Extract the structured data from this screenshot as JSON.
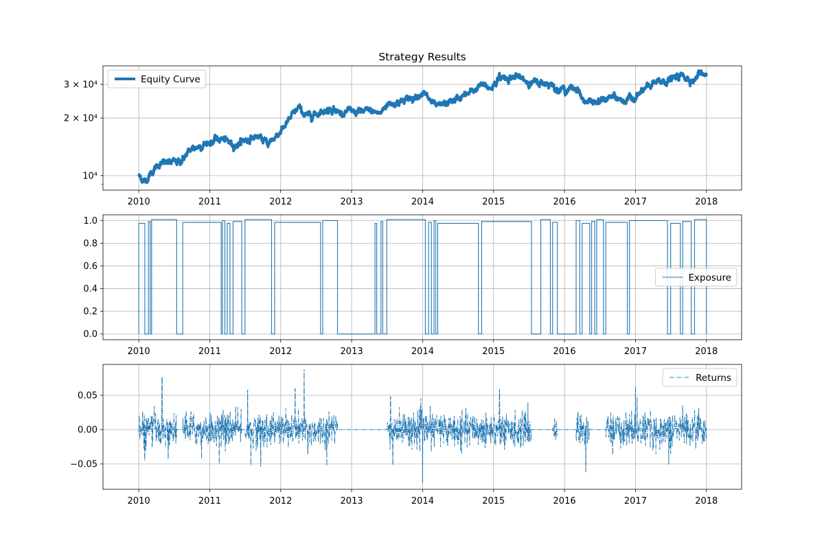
{
  "figure": {
    "title": "Strategy Results"
  },
  "chart_data": [
    {
      "type": "line",
      "name": "equity",
      "title": "Strategy Results",
      "series": [
        {
          "name": "Equity Curve",
          "color": "#1f77b4",
          "line_style": "solid",
          "points": [
            [
              "2010-01-01",
              10000
            ],
            [
              "2010-02-01",
              9300
            ],
            [
              "2010-03-01",
              10200
            ],
            [
              "2010-04-15",
              11500
            ],
            [
              "2010-06-01",
              11700
            ],
            [
              "2010-08-01",
              11800
            ],
            [
              "2010-10-01",
              13800
            ],
            [
              "2011-01-01",
              15000
            ],
            [
              "2011-03-01",
              15600
            ],
            [
              "2011-05-15",
              14400
            ],
            [
              "2011-07-01",
              15400
            ],
            [
              "2011-09-01",
              16000
            ],
            [
              "2011-11-01",
              14700
            ],
            [
              "2012-01-15",
              17800
            ],
            [
              "2012-04-01",
              22600
            ],
            [
              "2012-05-15",
              20400
            ],
            [
              "2012-08-01",
              21700
            ],
            [
              "2012-10-01",
              22600
            ],
            [
              "2012-10-20",
              21400
            ],
            [
              "2013-01-01",
              21600
            ],
            [
              "2013-04-01",
              21700
            ],
            [
              "2013-06-01",
              21200
            ],
            [
              "2013-07-01",
              23800
            ],
            [
              "2013-10-01",
              24600
            ],
            [
              "2014-01-01",
              27200
            ],
            [
              "2014-03-15",
              22700
            ],
            [
              "2014-06-01",
              24500
            ],
            [
              "2014-09-01",
              27000
            ],
            [
              "2014-11-01",
              29800
            ],
            [
              "2014-12-15",
              28600
            ],
            [
              "2015-02-01",
              32500
            ],
            [
              "2015-05-01",
              32800
            ],
            [
              "2015-07-15",
              30600
            ],
            [
              "2015-10-15",
              30500
            ],
            [
              "2015-12-01",
              28200
            ],
            [
              "2016-03-15",
              28500
            ],
            [
              "2016-04-01",
              24800
            ],
            [
              "2016-06-15",
              24000
            ],
            [
              "2016-09-01",
              25800
            ],
            [
              "2016-11-01",
              24600
            ],
            [
              "2017-01-01",
              25800
            ],
            [
              "2017-04-01",
              30200
            ],
            [
              "2017-06-01",
              31200
            ],
            [
              "2017-09-01",
              33300
            ],
            [
              "2017-11-01",
              31500
            ],
            [
              "2017-12-01",
              35000
            ],
            [
              "2018-01-01",
              34300
            ]
          ]
        }
      ],
      "y_scale": "log",
      "xlim": [
        "2009-07-01",
        "2018-07-01"
      ],
      "ylim": [
        8400,
        37500
      ],
      "y_ticks": [
        {
          "value": 10000,
          "label": "10⁴"
        },
        {
          "value": 20000,
          "label": "2 × 10⁴"
        },
        {
          "value": 30000,
          "label": "3 × 10⁴"
        }
      ],
      "x_tick_labels": [
        "2010",
        "2011",
        "2012",
        "2013",
        "2014",
        "2015",
        "2016",
        "2017",
        "2018"
      ],
      "grid": true,
      "legend": "top-left"
    },
    {
      "type": "line",
      "name": "exposure",
      "series": [
        {
          "name": "Exposure",
          "color": "#1f77b4",
          "line_style": "solid",
          "intervals": [
            [
              "2010-01-01",
              "2010-02-01"
            ],
            [
              "2010-02-20",
              "2010-03-01"
            ],
            [
              "2010-03-08",
              "2010-07-15"
            ],
            [
              "2010-08-15",
              "2011-03-01"
            ],
            [
              "2011-03-08",
              "2011-03-20"
            ],
            [
              "2011-04-01",
              "2011-04-15"
            ],
            [
              "2011-05-01",
              "2011-06-15"
            ],
            [
              "2011-07-01",
              "2011-11-15"
            ],
            [
              "2011-12-01",
              "2012-07-25"
            ],
            [
              "2012-08-05",
              "2012-10-20"
            ],
            [
              "2013-05-01",
              "2013-05-10"
            ],
            [
              "2013-06-01",
              "2013-06-10"
            ],
            [
              "2013-07-01",
              "2014-01-15"
            ],
            [
              "2014-02-01",
              "2014-02-15"
            ],
            [
              "2014-03-01",
              "2014-03-10"
            ],
            [
              "2014-03-20",
              "2014-10-15"
            ],
            [
              "2014-11-01",
              "2015-07-15"
            ],
            [
              "2015-09-01",
              "2015-10-20"
            ],
            [
              "2015-11-01",
              "2015-11-25"
            ],
            [
              "2016-03-01",
              "2016-03-20"
            ],
            [
              "2016-04-01",
              "2016-05-10"
            ],
            [
              "2016-05-20",
              "2016-06-05"
            ],
            [
              "2016-06-15",
              "2016-07-20"
            ],
            [
              "2016-08-01",
              "2016-11-20"
            ],
            [
              "2016-12-01",
              "2017-06-15"
            ],
            [
              "2017-07-01",
              "2017-08-20"
            ],
            [
              "2017-09-01",
              "2017-10-15"
            ],
            [
              "2017-11-01",
              "2018-01-01"
            ]
          ]
        }
      ],
      "xlim": [
        "2009-07-01",
        "2018-07-01"
      ],
      "ylim": [
        -0.05,
        1.05
      ],
      "y_ticks": [
        {
          "value": 0.0,
          "label": "0.0"
        },
        {
          "value": 0.2,
          "label": "0.2"
        },
        {
          "value": 0.4,
          "label": "0.4"
        },
        {
          "value": 0.6,
          "label": "0.6"
        },
        {
          "value": 0.8,
          "label": "0.8"
        },
        {
          "value": 1.0,
          "label": "1.0"
        }
      ],
      "x_tick_labels": [
        "2010",
        "2011",
        "2012",
        "2013",
        "2014",
        "2015",
        "2016",
        "2017",
        "2018"
      ],
      "grid": true,
      "legend": "center-right"
    },
    {
      "type": "line",
      "name": "returns",
      "series": [
        {
          "name": "Returns",
          "color": "#1f77b4",
          "line_style": "dash-dot",
          "active_periods": [
            [
              "2010-01-01",
              "2010-07-15"
            ],
            [
              "2010-08-15",
              "2011-06-15"
            ],
            [
              "2011-07-01",
              "2012-10-20"
            ],
            [
              "2013-07-01",
              "2015-07-15"
            ],
            [
              "2015-11-01",
              "2015-11-25"
            ],
            [
              "2016-03-01",
              "2016-05-10"
            ],
            [
              "2016-08-01",
              "2018-01-01"
            ]
          ],
          "spikes": [
            [
              "2010-05-01",
              0.077
            ],
            [
              "2010-06-01",
              -0.043
            ],
            [
              "2010-02-01",
              -0.045
            ],
            [
              "2011-08-01",
              -0.052
            ],
            [
              "2011-07-15",
              0.058
            ],
            [
              "2011-09-20",
              -0.054
            ],
            [
              "2012-03-15",
              0.06
            ],
            [
              "2012-05-01",
              0.088
            ],
            [
              "2012-05-20",
              -0.035
            ],
            [
              "2013-08-01",
              -0.052
            ],
            [
              "2013-07-20",
              0.048
            ],
            [
              "2014-01-01",
              -0.078
            ],
            [
              "2015-02-01",
              0.059
            ],
            [
              "2016-04-20",
              -0.062
            ],
            [
              "2016-03-10",
              0.025
            ],
            [
              "2017-01-01",
              0.062
            ],
            [
              "2017-09-01",
              0.035
            ],
            [
              "2017-07-01",
              -0.035
            ]
          ]
        }
      ],
      "xlim": [
        "2009-07-01",
        "2018-07-01"
      ],
      "ylim": [
        -0.087,
        0.095
      ],
      "y_ticks": [
        {
          "value": -0.05,
          "label": "−0.05"
        },
        {
          "value": 0.0,
          "label": "0.00"
        },
        {
          "value": 0.05,
          "label": "0.05"
        }
      ],
      "x_tick_labels": [
        "2010",
        "2011",
        "2012",
        "2013",
        "2014",
        "2015",
        "2016",
        "2017",
        "2018"
      ],
      "grid": true,
      "legend": "top-right"
    }
  ]
}
